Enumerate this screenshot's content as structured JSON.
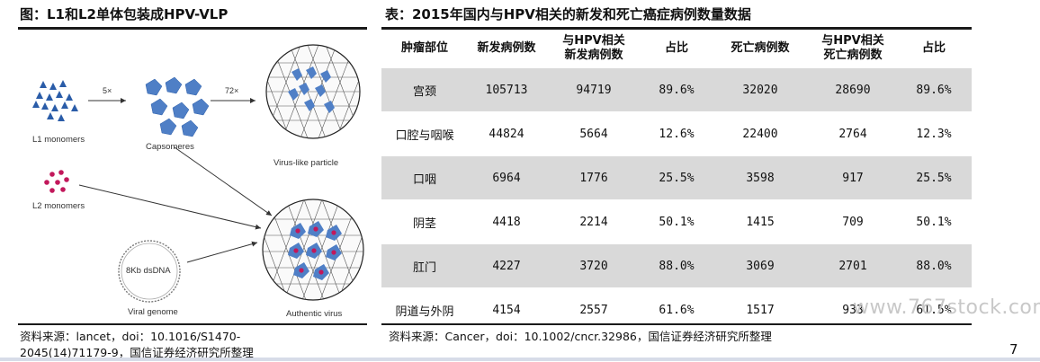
{
  "left": {
    "title": "图：L1和L2单体包装成HPV-VLP",
    "figure": {
      "labels": {
        "l1_monomers": "L1 monomers",
        "capsomeres": "Capsomeres",
        "virus_like_particle": "Virus-like particle",
        "l2_monomers": "L2 monomers",
        "viral_genome": "Viral genome",
        "authentic_virus": "Authentic virus",
        "dsdna": "8Kb dsDNA",
        "step1": "5×",
        "step2": "72×"
      },
      "colors": {
        "monomer": "#2a5ca8",
        "capsomere": "#4f7fc6",
        "l2": "#c2185b",
        "shell": "#222222",
        "arrow": "#333333"
      }
    },
    "source_line1": "资料来源：lancet，doi：10.1016/S1470-",
    "source_line2": "2045(14)71179-9，国信证券经济研究所整理"
  },
  "right": {
    "title": "表：2015年国内与HPV相关的新发和死亡癌症病例数量数据",
    "headers": [
      {
        "line1": "肿瘤部位",
        "line2": ""
      },
      {
        "line1": "新发病例数",
        "line2": ""
      },
      {
        "line1": "与HPV相关",
        "line2": "新发病例数"
      },
      {
        "line1": "占比",
        "line2": ""
      },
      {
        "line1": "死亡病例数",
        "line2": ""
      },
      {
        "line1": "与HPV相关",
        "line2": "死亡病例数"
      },
      {
        "line1": "占比",
        "line2": ""
      }
    ],
    "rows": [
      {
        "site": "宫颈",
        "new_cases": "105713",
        "hpv_new": "94719",
        "new_pct": "89.6%",
        "deaths": "32020",
        "hpv_deaths": "28690",
        "death_pct": "89.6%"
      },
      {
        "site": "口腔与咽喉",
        "new_cases": "44824",
        "hpv_new": "5664",
        "new_pct": "12.6%",
        "deaths": "22400",
        "hpv_deaths": "2764",
        "death_pct": "12.3%"
      },
      {
        "site": "口咽",
        "new_cases": "6964",
        "hpv_new": "1776",
        "new_pct": "25.5%",
        "deaths": "3598",
        "hpv_deaths": "917",
        "death_pct": "25.5%"
      },
      {
        "site": "阴茎",
        "new_cases": "4418",
        "hpv_new": "2214",
        "new_pct": "50.1%",
        "deaths": "1415",
        "hpv_deaths": "709",
        "death_pct": "50.1%"
      },
      {
        "site": "肛门",
        "new_cases": "4227",
        "hpv_new": "3720",
        "new_pct": "88.0%",
        "deaths": "3069",
        "hpv_deaths": "2701",
        "death_pct": "88.0%"
      },
      {
        "site": "阴道与外阴",
        "new_cases": "4154",
        "hpv_new": "2557",
        "new_pct": "61.6%",
        "deaths": "1517",
        "hpv_deaths": "933",
        "death_pct": "61.5%"
      }
    ],
    "source": "资料来源：Cancer，doi：10.1002/cncr.32986，国信证券经济研究所整理"
  },
  "watermark": "www.767stock.com",
  "page_number": "7"
}
